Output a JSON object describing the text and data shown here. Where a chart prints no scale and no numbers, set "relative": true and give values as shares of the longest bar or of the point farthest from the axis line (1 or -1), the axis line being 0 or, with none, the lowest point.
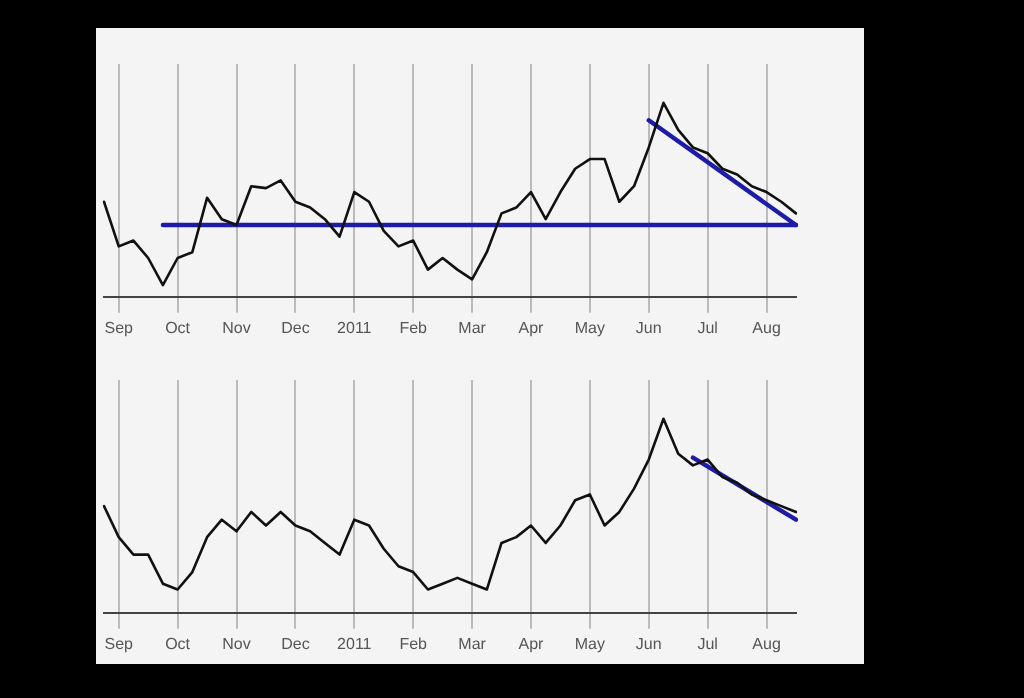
{
  "chart_data": [
    {
      "type": "line",
      "relative": true,
      "grid": "x",
      "tick_labels": "x",
      "marker": "none",
      "categories": [
        null,
        "Sep",
        null,
        null,
        null,
        "Oct",
        null,
        null,
        null,
        "Nov",
        null,
        null,
        null,
        "Dec",
        null,
        null,
        null,
        "2011",
        null,
        null,
        null,
        "Feb",
        null,
        null,
        null,
        "Mar",
        null,
        null,
        null,
        "Apr",
        null,
        null,
        null,
        "May",
        null,
        null,
        null,
        "Jun",
        null,
        null,
        null,
        "Jul",
        null,
        null,
        null,
        "Aug",
        null,
        null
      ],
      "series": [
        {
          "color": "#111111",
          "values": [
            0.49,
            0.26,
            0.29,
            0.2,
            0.06,
            0.2,
            0.23,
            0.51,
            0.4,
            0.37,
            0.57,
            0.56,
            0.6,
            0.49,
            0.46,
            0.4,
            0.31,
            0.54,
            0.49,
            0.34,
            0.26,
            0.29,
            0.14,
            0.2,
            0.14,
            0.09,
            0.23,
            0.43,
            0.46,
            0.54,
            0.4,
            0.54,
            0.66,
            0.71,
            0.71,
            0.49,
            0.57,
            0.77,
            1,
            0.86,
            0.77,
            0.74,
            0.66,
            0.63,
            0.57,
            0.54,
            0.49,
            0.43
          ]
        },
        {
          "type": "line",
          "color": "#1c1ca8",
          "values": [
            null,
            null,
            null,
            null,
            0.37,
            null,
            null,
            null,
            null,
            null,
            null,
            null,
            null,
            null,
            null,
            null,
            null,
            null,
            null,
            null,
            null,
            null,
            null,
            null,
            null,
            null,
            null,
            null,
            null,
            null,
            null,
            null,
            null,
            null,
            null,
            null,
            null,
            null,
            null,
            null,
            null,
            null,
            null,
            null,
            null,
            null,
            null,
            0.37
          ]
        },
        {
          "type": "line",
          "color": "#1c1ca8",
          "values": [
            null,
            null,
            null,
            null,
            null,
            null,
            null,
            null,
            null,
            null,
            null,
            null,
            null,
            null,
            null,
            null,
            null,
            null,
            null,
            null,
            null,
            null,
            null,
            null,
            null,
            null,
            null,
            null,
            null,
            null,
            null,
            null,
            null,
            null,
            null,
            null,
            null,
            0.91,
            null,
            null,
            null,
            null,
            null,
            null,
            null,
            null,
            null,
            0.37
          ]
        }
      ]
    },
    {
      "type": "line",
      "relative": true,
      "grid": "x",
      "tick_labels": "x",
      "marker": "none",
      "categories": [
        null,
        "Sep",
        null,
        null,
        null,
        "Oct",
        null,
        null,
        null,
        "Nov",
        null,
        null,
        null,
        "Dec",
        null,
        null,
        null,
        "2011",
        null,
        null,
        null,
        "Feb",
        null,
        null,
        null,
        "Mar",
        null,
        null,
        null,
        "Apr",
        null,
        null,
        null,
        "May",
        null,
        null,
        null,
        "Jun",
        null,
        null,
        null,
        "Jul",
        null,
        null,
        null,
        "Aug",
        null,
        null
      ],
      "series": [
        {
          "color": "#111111",
          "values": [
            0.55,
            0.39,
            0.3,
            0.3,
            0.15,
            0.12,
            0.21,
            0.39,
            0.48,
            0.42,
            0.52,
            0.45,
            0.52,
            0.45,
            0.42,
            0.36,
            0.3,
            0.48,
            0.45,
            0.33,
            0.24,
            0.21,
            0.12,
            0.15,
            0.18,
            0.15,
            0.12,
            0.36,
            0.39,
            0.45,
            0.36,
            0.45,
            0.58,
            0.61,
            0.45,
            0.52,
            0.64,
            0.79,
            1,
            0.82,
            0.76,
            0.79,
            0.7,
            0.67,
            0.61,
            0.58,
            0.55,
            0.52
          ]
        },
        {
          "type": "line",
          "color": "#1c1ca8",
          "values": [
            null,
            null,
            null,
            null,
            null,
            null,
            null,
            null,
            null,
            null,
            null,
            null,
            null,
            null,
            null,
            null,
            null,
            null,
            null,
            null,
            null,
            null,
            null,
            null,
            null,
            null,
            null,
            null,
            null,
            null,
            null,
            null,
            null,
            null,
            null,
            null,
            null,
            null,
            null,
            null,
            0.8,
            null,
            null,
            null,
            null,
            null,
            null,
            0.48
          ]
        }
      ]
    }
  ]
}
